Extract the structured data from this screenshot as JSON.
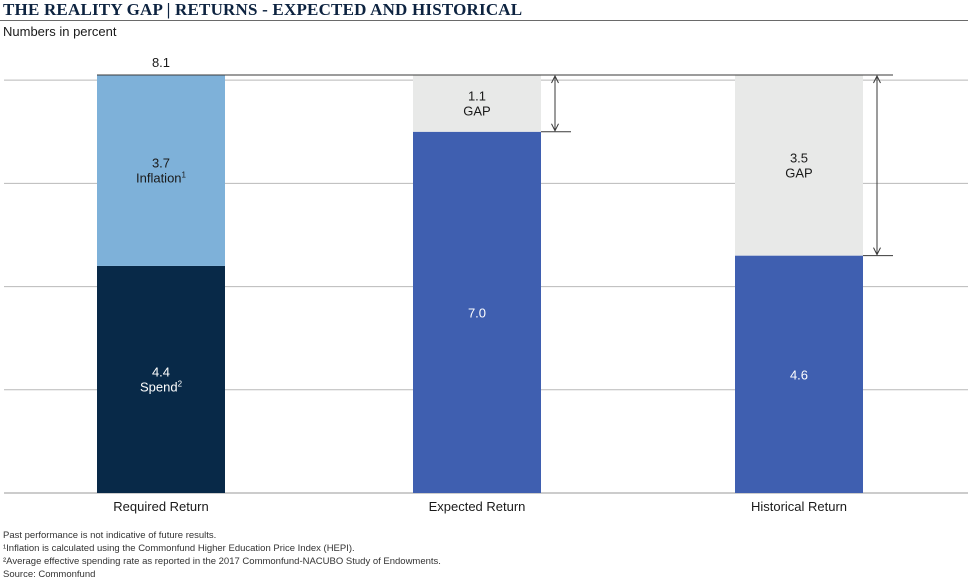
{
  "header": {
    "title": "THE REALITY GAP | RETURNS - EXPECTED AND HISTORICAL",
    "subtitle": "Numbers in percent"
  },
  "colors": {
    "spend": "#082948",
    "inflation": "#7eb1d9",
    "return": "#3f5fb0",
    "gap": "#e8e9e8",
    "grid": "#b9b9b9"
  },
  "chart_data": {
    "type": "bar",
    "stacked": true,
    "categories": [
      "Required Return",
      "Expected Return",
      "Historical Return"
    ],
    "ylim": [
      0,
      8.1
    ],
    "grid": true,
    "total_label": "8.1",
    "segments": [
      {
        "category": "Required Return",
        "kind": "spend",
        "value": 4.4,
        "label": "4.4",
        "sublabel": "Spend",
        "sup": "2"
      },
      {
        "category": "Required Return",
        "kind": "inflation",
        "value": 3.7,
        "label": "3.7",
        "sublabel": "Inflation",
        "sup": "1"
      },
      {
        "category": "Expected Return",
        "kind": "return",
        "value": 7.0,
        "label": "7.0",
        "sublabel": "",
        "sup": ""
      },
      {
        "category": "Expected Return",
        "kind": "gap",
        "value": 1.1,
        "label": "1.1",
        "sublabel": "GAP",
        "sup": ""
      },
      {
        "category": "Historical Return",
        "kind": "return",
        "value": 4.6,
        "label": "4.6",
        "sublabel": "",
        "sup": ""
      },
      {
        "category": "Historical Return",
        "kind": "gap",
        "value": 3.5,
        "label": "3.5",
        "sublabel": "GAP",
        "sup": ""
      }
    ]
  },
  "footnotes": [
    "Past performance is not indicative of future results.",
    "¹Inflation is calculated using the Commonfund Higher Education Price Index (HEPI).",
    "²Average effective spending rate as reported in the 2017 Commonfund-NACUBO Study of Endowments.",
    "Source: Commonfund"
  ]
}
